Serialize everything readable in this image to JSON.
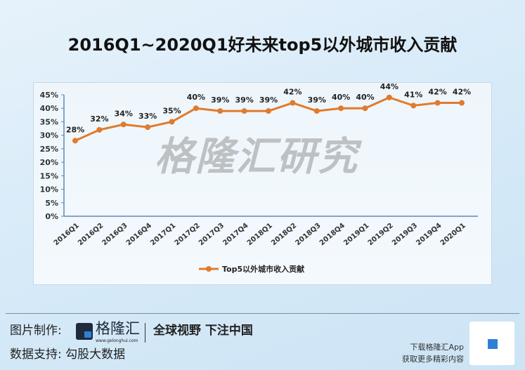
{
  "chart_data": {
    "type": "line",
    "title": "2016Q1~2020Q1好未来top5以外城市收入贡献",
    "categories": [
      "2016Q1",
      "2016Q2",
      "2016Q3",
      "2016Q4",
      "2017Q1",
      "2017Q2",
      "2017Q3",
      "2017Q4",
      "2018Q1",
      "2018Q2",
      "2018Q3",
      "2018Q4",
      "2019Q1",
      "2019Q2",
      "2019Q3",
      "2019Q4",
      "2020Q1"
    ],
    "series": [
      {
        "name": "Top5以外城市收入贡献",
        "values": [
          28,
          32,
          34,
          33,
          35,
          40,
          39,
          39,
          39,
          42,
          39,
          40,
          40,
          44,
          41,
          42,
          42
        ],
        "color": "#e07b2d"
      }
    ],
    "yticks": [
      "0%",
      "5%",
      "10%",
      "15%",
      "20%",
      "25%",
      "30%",
      "35%",
      "40%",
      "45%"
    ],
    "ylim": [
      0,
      45
    ],
    "xlabel": "",
    "ylabel": "",
    "grid": false,
    "legend": "bottom"
  },
  "watermark": "格隆汇研究",
  "footer": {
    "made_by_label": "图片制作:",
    "brand": "格隆汇",
    "brand_url": "www.gelonghui.com",
    "slogan": "全球视野 下注中国",
    "data_label": "数据支持:  勾股大数据",
    "download": "下载格隆汇App",
    "more": "获取更多精彩内容"
  }
}
